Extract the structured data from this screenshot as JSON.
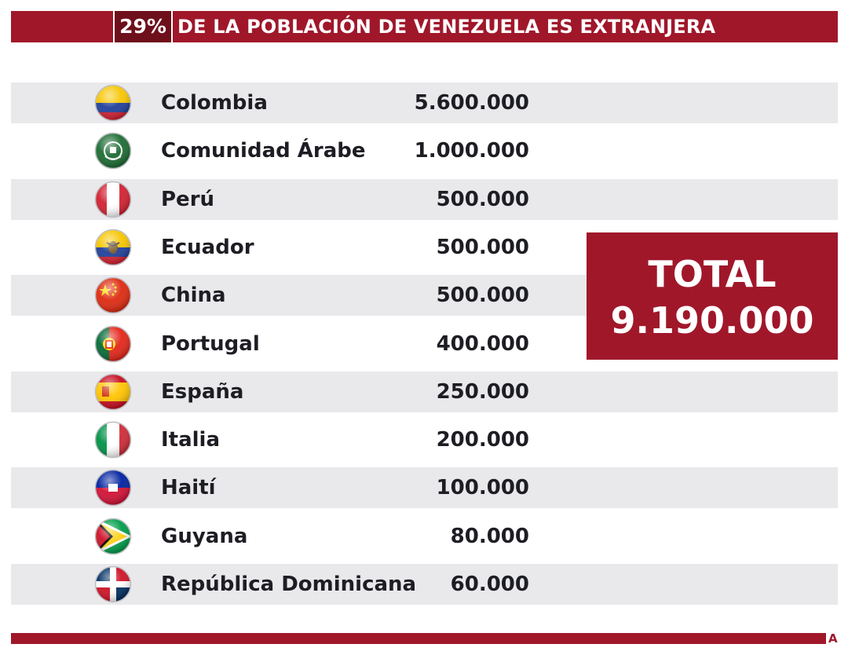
{
  "header": {
    "percent": "29%",
    "title": "DE LA POBLACIÓN DE VENEZUELA ES EXTRANJERA"
  },
  "chart_data": {
    "type": "table",
    "title": "29% DE LA POBLACIÓN DE VENEZUELA ES EXTRANJERA",
    "rows": [
      {
        "country": "Colombia",
        "display": "5.600.000",
        "value": 5600000,
        "flag": "colombia-flag-icon"
      },
      {
        "country": "Comunidad Árabe",
        "display": "1.000.000",
        "value": 1000000,
        "flag": "arab-league-flag-icon"
      },
      {
        "country": "Perú",
        "display": "500.000",
        "value": 500000,
        "flag": "peru-flag-icon"
      },
      {
        "country": "Ecuador",
        "display": "500.000",
        "value": 500000,
        "flag": "ecuador-flag-icon"
      },
      {
        "country": "China",
        "display": "500.000",
        "value": 500000,
        "flag": "china-flag-icon"
      },
      {
        "country": "Portugal",
        "display": "400.000",
        "value": 400000,
        "flag": "portugal-flag-icon"
      },
      {
        "country": "España",
        "display": "250.000",
        "value": 250000,
        "flag": "spain-flag-icon"
      },
      {
        "country": "Italia",
        "display": "200.000",
        "value": 200000,
        "flag": "italy-flag-icon"
      },
      {
        "country": "Haití",
        "display": "100.000",
        "value": 100000,
        "flag": "haiti-flag-icon"
      },
      {
        "country": "Guyana",
        "display": "80.000",
        "value": 80000,
        "flag": "guyana-flag-icon"
      },
      {
        "country": "República Dominicana",
        "display": "60.000",
        "value": 60000,
        "flag": "dominican-republic-flag-icon"
      }
    ]
  },
  "total": {
    "label": "TOTAL",
    "value": "9.190.000"
  },
  "footer": {
    "logo_text": "A"
  },
  "colors": {
    "brand_red": "#a0172a",
    "dark_red": "#6e0f1c",
    "row_shade": "#e9e9ec",
    "text": "#1d1d24"
  }
}
